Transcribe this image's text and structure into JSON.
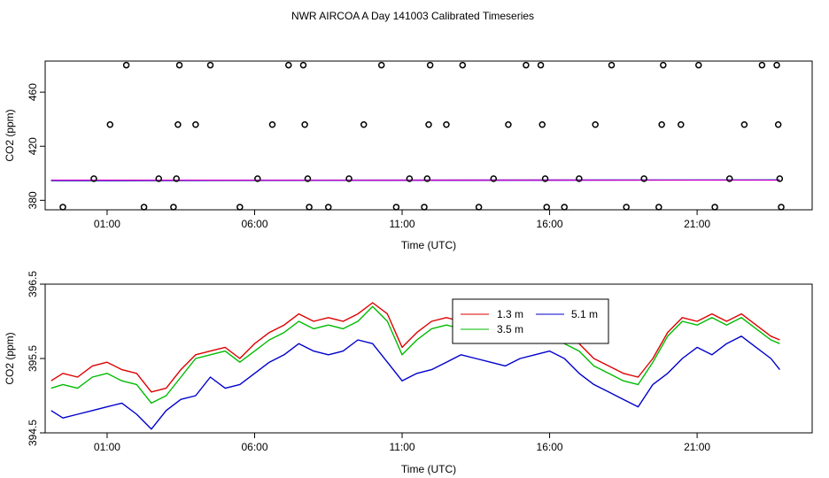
{
  "title": "NWR AIRCOA A  Day 141003  Calibrated Timeseries",
  "colors": {
    "red": "#dd0000",
    "green": "#00bb00",
    "blue": "#0000cc",
    "cyan": "#00aaaa",
    "magenta": "#cc00cc"
  },
  "chart_data": [
    {
      "type": "scatter",
      "xlabel": "Time (UTC)",
      "ylabel": "CO2 (ppm)",
      "xlim": [
        -1.1,
        24.9
      ],
      "ylim": [
        373,
        483
      ],
      "xticks": [
        1,
        6,
        11,
        16,
        21
      ],
      "xtick_labels": [
        "01:00",
        "06:00",
        "11:00",
        "16:00",
        "21:00"
      ],
      "yticks": [
        380,
        420,
        460
      ],
      "ytick_labels": [
        "380",
        "420",
        "460"
      ],
      "grid": false,
      "circles": [
        {
          "x": -0.5,
          "y": 375
        },
        {
          "x": 0.55,
          "y": 396
        },
        {
          "x": 1.1,
          "y": 436
        },
        {
          "x": 1.65,
          "y": 480
        },
        {
          "x": 2.25,
          "y": 375
        },
        {
          "x": 2.75,
          "y": 396
        },
        {
          "x": 3.25,
          "y": 375
        },
        {
          "x": 3.35,
          "y": 396
        },
        {
          "x": 3.4,
          "y": 436
        },
        {
          "x": 3.45,
          "y": 480
        },
        {
          "x": 4.0,
          "y": 436
        },
        {
          "x": 4.5,
          "y": 480
        },
        {
          "x": 5.5,
          "y": 375
        },
        {
          "x": 6.1,
          "y": 396
        },
        {
          "x": 6.6,
          "y": 436
        },
        {
          "x": 7.15,
          "y": 480
        },
        {
          "x": 7.65,
          "y": 480
        },
        {
          "x": 7.7,
          "y": 436
        },
        {
          "x": 7.8,
          "y": 396
        },
        {
          "x": 7.85,
          "y": 375
        },
        {
          "x": 8.5,
          "y": 375
        },
        {
          "x": 9.2,
          "y": 396
        },
        {
          "x": 9.7,
          "y": 436
        },
        {
          "x": 10.3,
          "y": 480
        },
        {
          "x": 10.8,
          "y": 375
        },
        {
          "x": 11.25,
          "y": 396
        },
        {
          "x": 11.75,
          "y": 375
        },
        {
          "x": 11.85,
          "y": 396
        },
        {
          "x": 11.9,
          "y": 436
        },
        {
          "x": 11.95,
          "y": 480
        },
        {
          "x": 12.5,
          "y": 436
        },
        {
          "x": 13.05,
          "y": 480
        },
        {
          "x": 13.6,
          "y": 375
        },
        {
          "x": 14.1,
          "y": 396
        },
        {
          "x": 14.6,
          "y": 436
        },
        {
          "x": 15.2,
          "y": 480
        },
        {
          "x": 15.7,
          "y": 480
        },
        {
          "x": 15.75,
          "y": 436
        },
        {
          "x": 15.85,
          "y": 396
        },
        {
          "x": 15.9,
          "y": 375
        },
        {
          "x": 16.5,
          "y": 375
        },
        {
          "x": 17.0,
          "y": 396
        },
        {
          "x": 17.55,
          "y": 436
        },
        {
          "x": 18.1,
          "y": 480
        },
        {
          "x": 18.6,
          "y": 375
        },
        {
          "x": 19.2,
          "y": 396
        },
        {
          "x": 19.7,
          "y": 375
        },
        {
          "x": 19.8,
          "y": 436
        },
        {
          "x": 19.85,
          "y": 480
        },
        {
          "x": 20.45,
          "y": 436
        },
        {
          "x": 21.05,
          "y": 480
        },
        {
          "x": 21.6,
          "y": 375
        },
        {
          "x": 22.1,
          "y": 396
        },
        {
          "x": 22.6,
          "y": 436
        },
        {
          "x": 23.2,
          "y": 480
        },
        {
          "x": 23.7,
          "y": 480
        },
        {
          "x": 23.75,
          "y": 436
        },
        {
          "x": 23.8,
          "y": 396
        },
        {
          "x": 23.85,
          "y": 375
        }
      ],
      "series": [
        {
          "color": "#0000cc",
          "values": [
            [
              -0.9,
              394.5
            ],
            [
              23.8,
              395.1
            ]
          ]
        },
        {
          "color": "#00aaaa",
          "values": [
            [
              -0.9,
              394.7
            ],
            [
              23.8,
              395.2
            ]
          ]
        },
        {
          "color": "#cc00cc",
          "values": [
            [
              -0.9,
              394.9
            ],
            [
              23.8,
              395.0
            ]
          ]
        }
      ]
    },
    {
      "type": "line",
      "xlabel": "Time (UTC)",
      "ylabel": "CO2 (ppm)",
      "xlim": [
        -1.1,
        24.9
      ],
      "ylim": [
        394.5,
        396.5
      ],
      "xticks": [
        1,
        6,
        11,
        16,
        21
      ],
      "xtick_labels": [
        "01:00",
        "06:00",
        "11:00",
        "16:00",
        "21:00"
      ],
      "yticks": [
        394.5,
        395.5,
        396.5
      ],
      "ytick_labels": [
        "394.5",
        "395.5",
        "396.5"
      ],
      "grid": false,
      "legend": {
        "position": "top-right",
        "entries": [
          {
            "label": "1.3 m",
            "color": "#dd0000"
          },
          {
            "label": "5.1 m",
            "color": "#0000cc"
          },
          {
            "label": "3.5 m",
            "color": "#00bb00"
          }
        ]
      },
      "series": [
        {
          "name": "1.3 m",
          "color": "#dd0000",
          "values": [
            [
              -0.9,
              395.2
            ],
            [
              -0.5,
              395.3
            ],
            [
              0.0,
              395.25
            ],
            [
              0.5,
              395.4
            ],
            [
              1.0,
              395.45
            ],
            [
              1.5,
              395.35
            ],
            [
              2.0,
              395.3
            ],
            [
              2.5,
              395.05
            ],
            [
              3.0,
              395.1
            ],
            [
              3.5,
              395.35
            ],
            [
              4.0,
              395.55
            ],
            [
              4.5,
              395.6
            ],
            [
              5.0,
              395.65
            ],
            [
              5.5,
              395.5
            ],
            [
              6.0,
              395.7
            ],
            [
              6.5,
              395.85
            ],
            [
              7.0,
              395.95
            ],
            [
              7.5,
              396.1
            ],
            [
              8.0,
              396.0
            ],
            [
              8.5,
              396.05
            ],
            [
              9.0,
              396.0
            ],
            [
              9.5,
              396.1
            ],
            [
              10.0,
              396.25
            ],
            [
              10.5,
              396.1
            ],
            [
              11.0,
              395.65
            ],
            [
              11.5,
              395.85
            ],
            [
              12.0,
              396.0
            ],
            [
              12.5,
              396.05
            ],
            [
              13.0,
              396.0
            ],
            [
              13.5,
              396.05
            ],
            [
              14.0,
              395.95
            ],
            [
              14.5,
              396.0
            ],
            [
              15.0,
              395.95
            ],
            [
              15.5,
              395.9
            ],
            [
              16.0,
              395.85
            ],
            [
              16.5,
              395.8
            ],
            [
              17.0,
              395.7
            ],
            [
              17.5,
              395.5
            ],
            [
              18.0,
              395.4
            ],
            [
              18.5,
              395.3
            ],
            [
              19.0,
              395.25
            ],
            [
              19.5,
              395.5
            ],
            [
              20.0,
              395.85
            ],
            [
              20.5,
              396.05
            ],
            [
              21.0,
              396.0
            ],
            [
              21.5,
              396.1
            ],
            [
              22.0,
              396.0
            ],
            [
              22.5,
              396.1
            ],
            [
              23.0,
              395.95
            ],
            [
              23.5,
              395.8
            ],
            [
              23.8,
              395.75
            ]
          ]
        },
        {
          "name": "5.1 m",
          "color": "#0000cc",
          "values": [
            [
              -0.9,
              394.8
            ],
            [
              -0.5,
              394.7
            ],
            [
              0.0,
              394.75
            ],
            [
              0.5,
              394.8
            ],
            [
              1.0,
              394.85
            ],
            [
              1.5,
              394.9
            ],
            [
              2.0,
              394.75
            ],
            [
              2.5,
              394.55
            ],
            [
              3.0,
              394.8
            ],
            [
              3.5,
              394.95
            ],
            [
              4.0,
              395.0
            ],
            [
              4.5,
              395.25
            ],
            [
              5.0,
              395.1
            ],
            [
              5.5,
              395.15
            ],
            [
              6.0,
              395.3
            ],
            [
              6.5,
              395.45
            ],
            [
              7.0,
              395.55
            ],
            [
              7.5,
              395.7
            ],
            [
              8.0,
              395.6
            ],
            [
              8.5,
              395.55
            ],
            [
              9.0,
              395.6
            ],
            [
              9.5,
              395.75
            ],
            [
              10.0,
              395.7
            ],
            [
              10.5,
              395.45
            ],
            [
              11.0,
              395.2
            ],
            [
              11.5,
              395.3
            ],
            [
              12.0,
              395.35
            ],
            [
              12.5,
              395.45
            ],
            [
              13.0,
              395.55
            ],
            [
              13.5,
              395.5
            ],
            [
              14.0,
              395.45
            ],
            [
              14.5,
              395.4
            ],
            [
              15.0,
              395.5
            ],
            [
              15.5,
              395.55
            ],
            [
              16.0,
              395.6
            ],
            [
              16.5,
              395.5
            ],
            [
              17.0,
              395.3
            ],
            [
              17.5,
              395.15
            ],
            [
              18.0,
              395.05
            ],
            [
              18.5,
              394.95
            ],
            [
              19.0,
              394.85
            ],
            [
              19.5,
              395.15
            ],
            [
              20.0,
              395.3
            ],
            [
              20.5,
              395.5
            ],
            [
              21.0,
              395.65
            ],
            [
              21.5,
              395.55
            ],
            [
              22.0,
              395.7
            ],
            [
              22.5,
              395.8
            ],
            [
              23.0,
              395.65
            ],
            [
              23.5,
              395.5
            ],
            [
              23.8,
              395.35
            ]
          ]
        },
        {
          "name": "3.5 m",
          "color": "#00bb00",
          "values": [
            [
              -0.9,
              395.1
            ],
            [
              -0.5,
              395.15
            ],
            [
              0.0,
              395.1
            ],
            [
              0.5,
              395.25
            ],
            [
              1.0,
              395.3
            ],
            [
              1.5,
              395.2
            ],
            [
              2.0,
              395.15
            ],
            [
              2.5,
              394.9
            ],
            [
              3.0,
              395.0
            ],
            [
              3.5,
              395.25
            ],
            [
              4.0,
              395.5
            ],
            [
              4.5,
              395.55
            ],
            [
              5.0,
              395.6
            ],
            [
              5.5,
              395.45
            ],
            [
              6.0,
              395.6
            ],
            [
              6.5,
              395.75
            ],
            [
              7.0,
              395.85
            ],
            [
              7.5,
              396.0
            ],
            [
              8.0,
              395.9
            ],
            [
              8.5,
              395.95
            ],
            [
              9.0,
              395.9
            ],
            [
              9.5,
              396.0
            ],
            [
              10.0,
              396.2
            ],
            [
              10.5,
              396.0
            ],
            [
              11.0,
              395.55
            ],
            [
              11.5,
              395.75
            ],
            [
              12.0,
              395.9
            ],
            [
              12.5,
              395.95
            ],
            [
              13.0,
              395.9
            ],
            [
              13.5,
              395.95
            ],
            [
              14.0,
              395.85
            ],
            [
              14.5,
              395.9
            ],
            [
              15.0,
              395.85
            ],
            [
              15.5,
              395.8
            ],
            [
              16.0,
              395.75
            ],
            [
              16.5,
              395.7
            ],
            [
              17.0,
              395.6
            ],
            [
              17.5,
              395.4
            ],
            [
              18.0,
              395.3
            ],
            [
              18.5,
              395.2
            ],
            [
              19.0,
              395.15
            ],
            [
              19.5,
              395.45
            ],
            [
              20.0,
              395.8
            ],
            [
              20.5,
              396.0
            ],
            [
              21.0,
              395.95
            ],
            [
              21.5,
              396.05
            ],
            [
              22.0,
              395.95
            ],
            [
              22.5,
              396.05
            ],
            [
              23.0,
              395.9
            ],
            [
              23.5,
              395.75
            ],
            [
              23.8,
              395.7
            ]
          ]
        }
      ]
    }
  ]
}
